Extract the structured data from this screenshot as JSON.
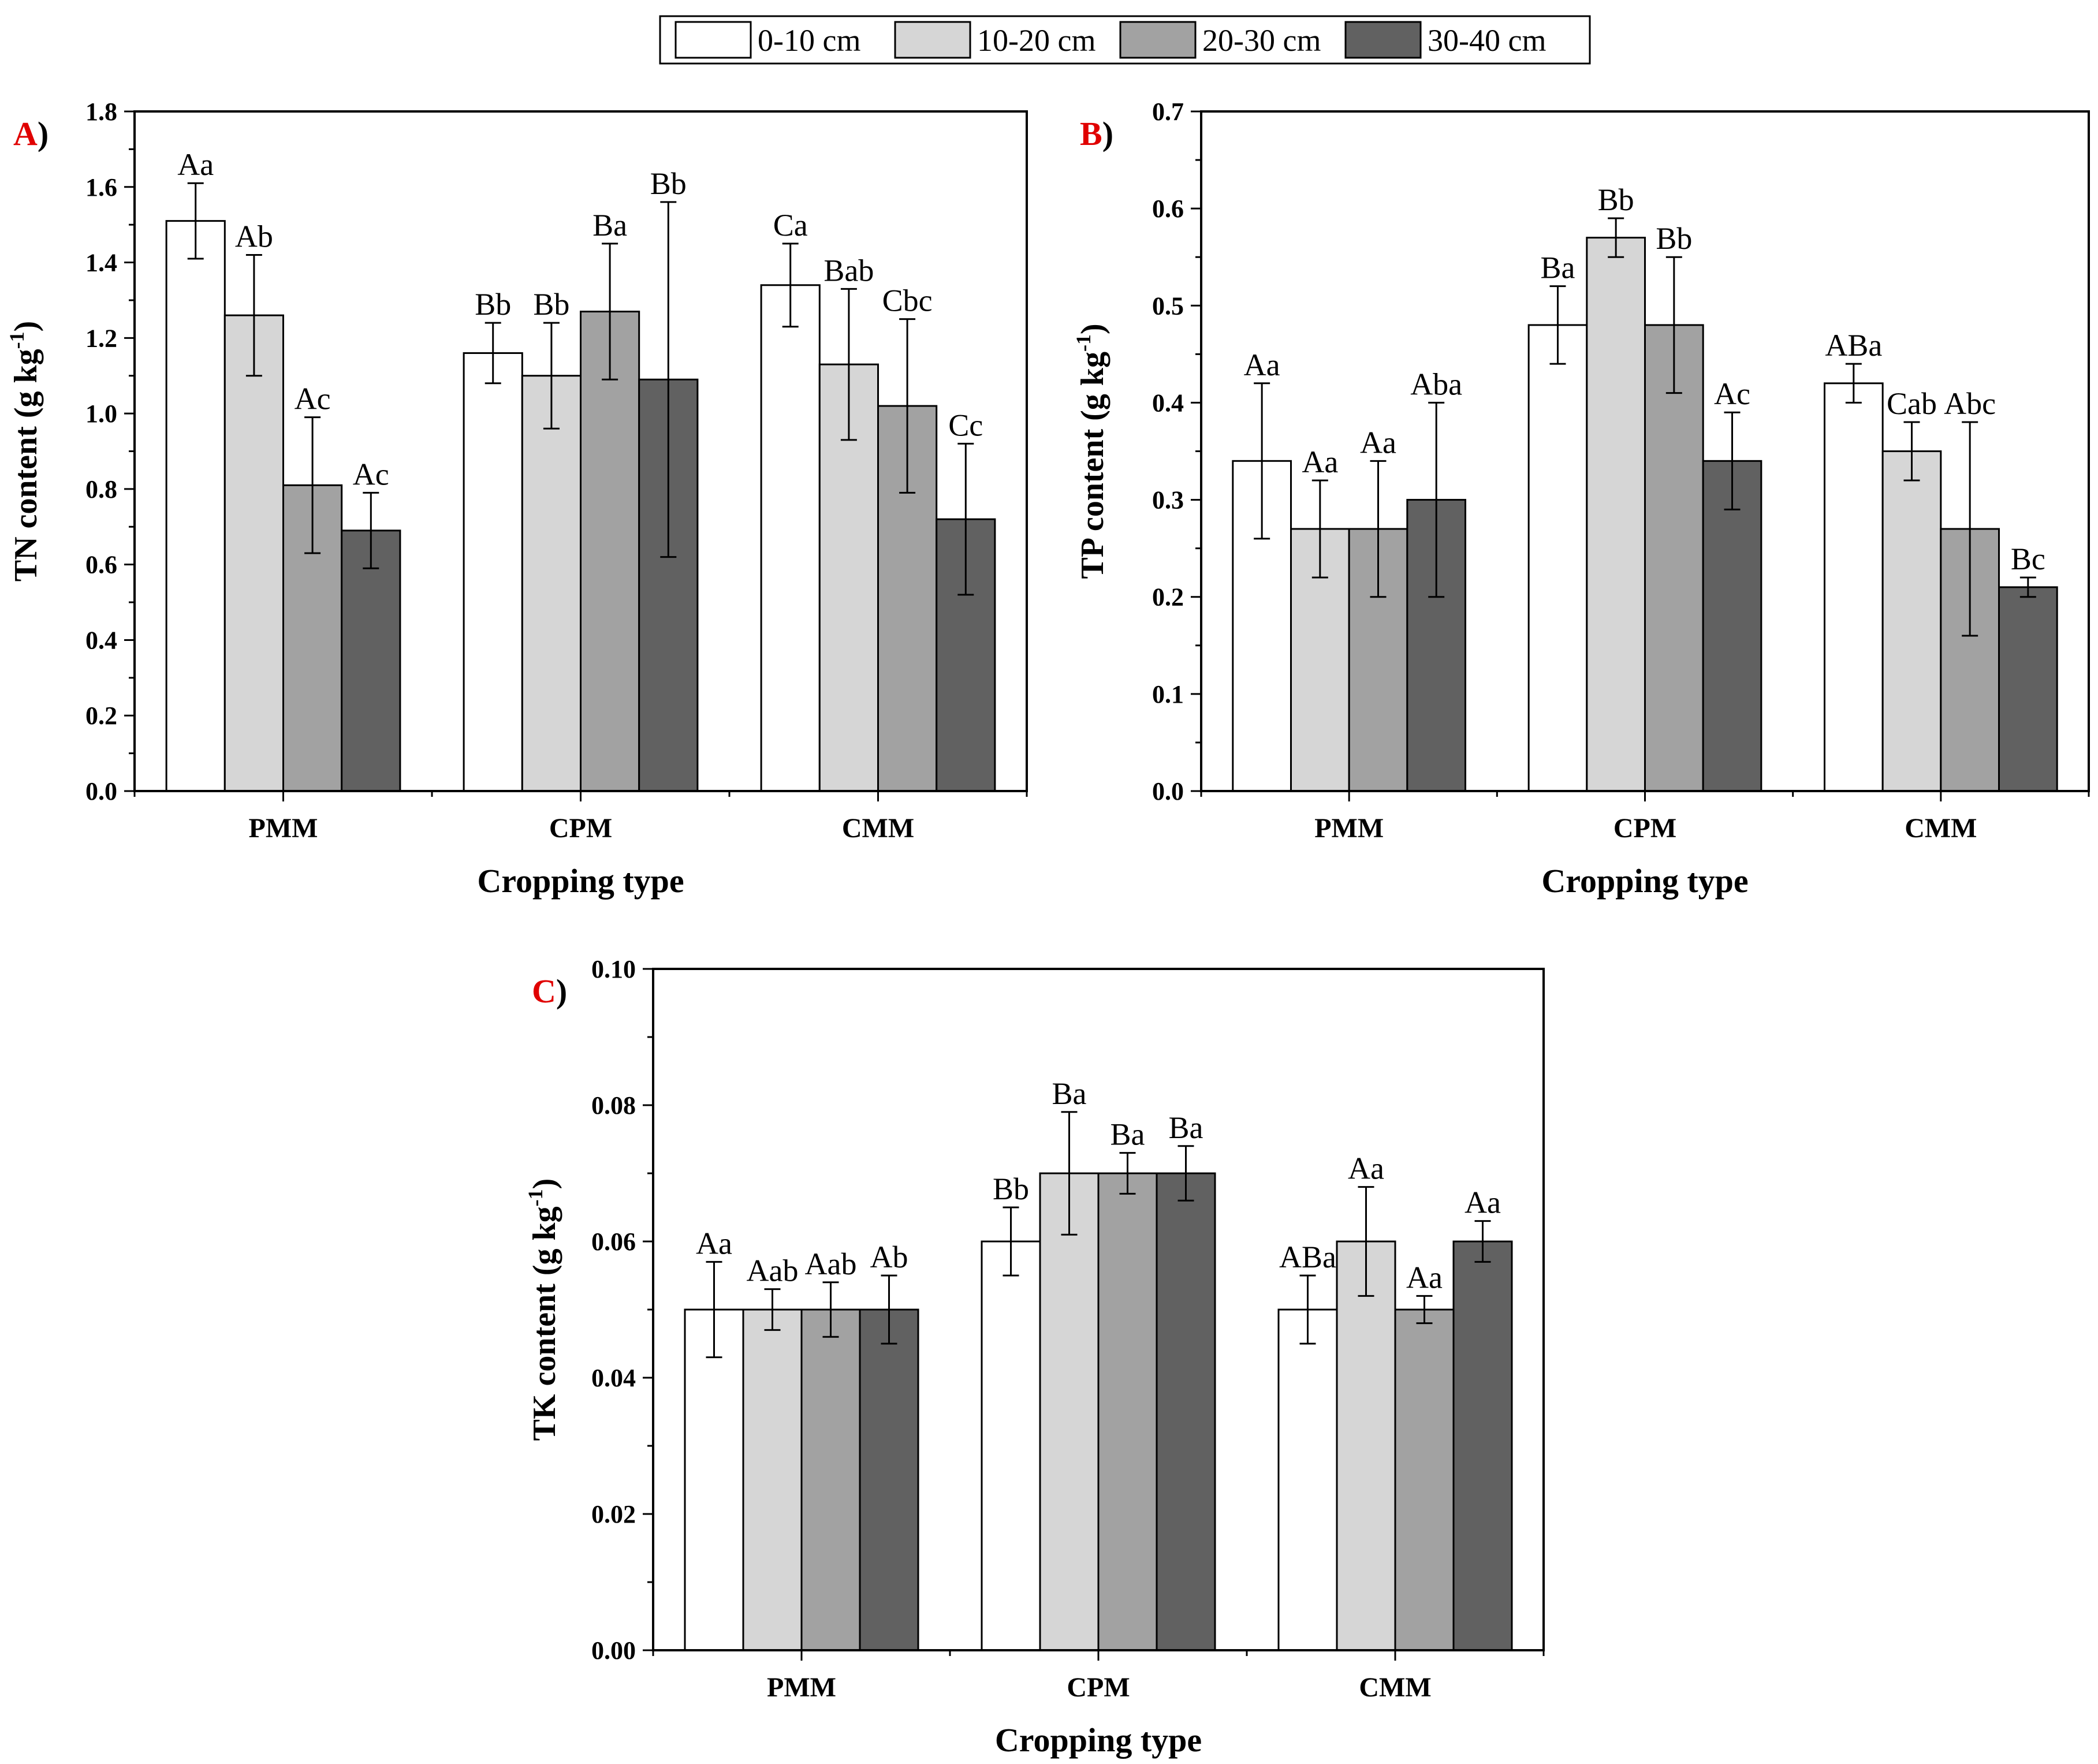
{
  "legend": [
    {
      "label": "0-10 cm",
      "color": "#ffffff"
    },
    {
      "label": "10-20 cm",
      "color": "#d6d6d6"
    },
    {
      "label": "20-30 cm",
      "color": "#a2a2a2"
    },
    {
      "label": "30-40 cm",
      "color": "#616161"
    }
  ],
  "chart_data": [
    {
      "type": "bar",
      "panel_letter": "A",
      "panel_suffix": ")",
      "title": "",
      "xlabel": "Cropping type",
      "ylabel": "TN content (g kg-1)",
      "ylabel_main": "TN content (g kg",
      "ylabel_sup": "-1",
      "ylabel_close": ")",
      "ylim": [
        0,
        1.8
      ],
      "yticks": [
        "0.0",
        "0.2",
        "0.4",
        "0.6",
        "0.8",
        "1.0",
        "1.2",
        "1.4",
        "1.6",
        "1.8"
      ],
      "categories": [
        "PMM",
        "CPM",
        "CMM"
      ],
      "series": [
        {
          "name": "0-10 cm",
          "values": [
            1.51,
            1.16,
            1.34
          ],
          "errors": [
            0.1,
            0.08,
            0.11
          ],
          "labels": [
            "Aa",
            "Bb",
            "Ca"
          ]
        },
        {
          "name": "10-20 cm",
          "values": [
            1.26,
            1.1,
            1.13
          ],
          "errors": [
            0.16,
            0.14,
            0.2
          ],
          "labels": [
            "Ab",
            "Bb",
            "Bab"
          ]
        },
        {
          "name": "20-30 cm",
          "values": [
            0.81,
            1.27,
            1.02
          ],
          "errors": [
            0.18,
            0.18,
            0.23
          ],
          "labels": [
            "Ac",
            "Ba",
            "Cbc"
          ]
        },
        {
          "name": "30-40 cm",
          "values": [
            0.69,
            1.09,
            0.72
          ],
          "errors": [
            0.1,
            0.47,
            0.2
          ],
          "labels": [
            "Ac",
            "Bb",
            "Cc"
          ]
        }
      ]
    },
    {
      "type": "bar",
      "panel_letter": "B",
      "panel_suffix": ")",
      "title": "",
      "xlabel": "Cropping type",
      "ylabel": "TP content (g kg-1)",
      "ylabel_main": "TP content (g kg",
      "ylabel_sup": "-1",
      "ylabel_close": ")",
      "ylim": [
        0,
        0.7
      ],
      "yticks": [
        "0.0",
        "0.1",
        "0.2",
        "0.3",
        "0.4",
        "0.5",
        "0.6",
        "0.7"
      ],
      "categories": [
        "PMM",
        "CPM",
        "CMM"
      ],
      "series": [
        {
          "name": "0-10 cm",
          "values": [
            0.34,
            0.48,
            0.42
          ],
          "errors": [
            0.08,
            0.04,
            0.02
          ],
          "labels": [
            "Aa",
            "Ba",
            "ABa"
          ]
        },
        {
          "name": "10-20 cm",
          "values": [
            0.27,
            0.57,
            0.35
          ],
          "errors": [
            0.05,
            0.02,
            0.03
          ],
          "labels": [
            "Aa",
            "Bb",
            "Cab"
          ]
        },
        {
          "name": "20-30 cm",
          "values": [
            0.27,
            0.48,
            0.27
          ],
          "errors": [
            0.07,
            0.07,
            0.11
          ],
          "labels": [
            "Aa",
            "Bb",
            "Abc"
          ]
        },
        {
          "name": "30-40 cm",
          "values": [
            0.3,
            0.34,
            0.21
          ],
          "errors": [
            0.1,
            0.05,
            0.01
          ],
          "labels": [
            "Aba",
            "Ac",
            "Bc"
          ]
        }
      ]
    },
    {
      "type": "bar",
      "panel_letter": "C",
      "panel_suffix": ")",
      "title": "",
      "xlabel": "Cropping type",
      "ylabel": "TK content (g kg-1)",
      "ylabel_main": "TK content (g kg",
      "ylabel_sup": "-1",
      "ylabel_close": ")",
      "ylim": [
        0,
        0.1
      ],
      "yticks": [
        "0.00",
        "0.02",
        "0.04",
        "0.06",
        "0.08",
        "0.10"
      ],
      "categories": [
        "PMM",
        "CPM",
        "CMM"
      ],
      "series": [
        {
          "name": "0-10 cm",
          "values": [
            0.05,
            0.06,
            0.05
          ],
          "errors": [
            0.007,
            0.005,
            0.005
          ],
          "labels": [
            "Aa",
            "Bb",
            "ABa"
          ]
        },
        {
          "name": "10-20 cm",
          "values": [
            0.05,
            0.07,
            0.06
          ],
          "errors": [
            0.003,
            0.009,
            0.008
          ],
          "labels": [
            "Aab",
            "Ba",
            "Aa"
          ]
        },
        {
          "name": "20-30 cm",
          "values": [
            0.05,
            0.07,
            0.05
          ],
          "errors": [
            0.004,
            0.003,
            0.002
          ],
          "labels": [
            "Aab",
            "Ba",
            "Aa"
          ]
        },
        {
          "name": "30-40 cm",
          "values": [
            0.05,
            0.07,
            0.06
          ],
          "errors": [
            0.005,
            0.004,
            0.003
          ],
          "labels": [
            "Ab",
            "Ba",
            "Aa"
          ]
        }
      ]
    }
  ]
}
